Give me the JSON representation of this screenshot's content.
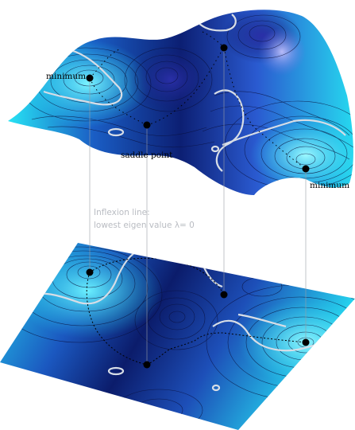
{
  "labels": {
    "minimum_left": "minimum",
    "saddle_point": "saddle point",
    "minimum_right": "minimum",
    "inflexion_line_1": "Inflexion line:",
    "inflexion_line_2": "lowest eigen value λ= 0"
  },
  "colors": {
    "deep_navy": "#0b1a66",
    "mid_blue": "#1d4fb8",
    "cyan": "#1fd6f0",
    "light_cyan": "#7ff2ff",
    "contour": "#0a0f3a",
    "inflexion": "#d7dde6",
    "annotation_gray": "#b9bcc2",
    "point": "#000000"
  }
}
